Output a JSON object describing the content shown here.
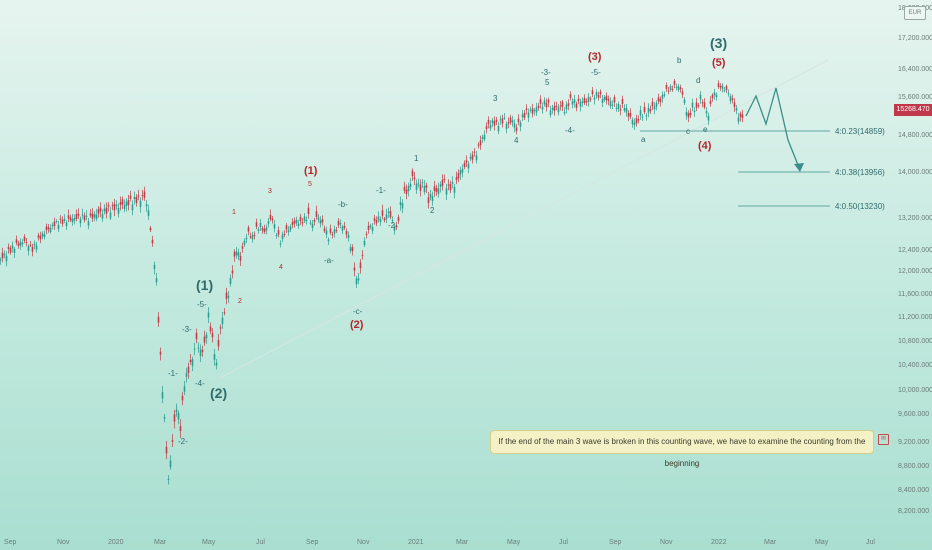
{
  "chart_data": {
    "type": "candlestick",
    "currency": "EUR",
    "last_price": "15268.470",
    "y_ticks": [
      "18,000.000",
      "17,200.000",
      "16,400.000",
      "15,600.000",
      "14,800.000",
      "14,000.000",
      "13,200.000",
      "12,400.000",
      "12,000.000",
      "11,600.000",
      "11,200.000",
      "10,800.000",
      "10,400.000",
      "10,000.000",
      "9,600.000",
      "9,200.000",
      "8,800.000",
      "8,400.000",
      "8,200.000"
    ],
    "y_tick_values": [
      18000,
      17200,
      16400,
      15600,
      14800,
      14000,
      13200,
      12400,
      12000,
      11600,
      11200,
      10800,
      10400,
      10000,
      9600,
      9200,
      8800,
      8400,
      8200
    ],
    "x_ticks": [
      "Sep",
      "Nov",
      "2020",
      "Mar",
      "May",
      "Jul",
      "Sep",
      "Nov",
      "2021",
      "Mar",
      "May",
      "Jul",
      "Sep",
      "Nov",
      "2022",
      "Mar",
      "May",
      "Jul"
    ],
    "close_path": [
      [
        0,
        12200
      ],
      [
        8,
        12350
      ],
      [
        16,
        12500
      ],
      [
        24,
        12600
      ],
      [
        32,
        12400
      ],
      [
        40,
        12700
      ],
      [
        48,
        12900
      ],
      [
        56,
        13050
      ],
      [
        64,
        13100
      ],
      [
        72,
        13150
      ],
      [
        80,
        13200
      ],
      [
        88,
        13150
      ],
      [
        96,
        13250
      ],
      [
        104,
        13300
      ],
      [
        112,
        13350
      ],
      [
        120,
        13400
      ],
      [
        128,
        13450
      ],
      [
        136,
        13500
      ],
      [
        144,
        13550
      ],
      [
        148,
        13300
      ],
      [
        152,
        12500
      ],
      [
        156,
        11800
      ],
      [
        160,
        10500
      ],
      [
        164,
        9500
      ],
      [
        168,
        8550
      ],
      [
        172,
        9200
      ],
      [
        176,
        9700
      ],
      [
        180,
        9400
      ],
      [
        184,
        10100
      ],
      [
        188,
        10300
      ],
      [
        192,
        10500
      ],
      [
        196,
        10800
      ],
      [
        200,
        10600
      ],
      [
        204,
        10700
      ],
      [
        208,
        11200
      ],
      [
        212,
        10800
      ],
      [
        216,
        10400
      ],
      [
        220,
        11000
      ],
      [
        224,
        11300
      ],
      [
        228,
        11600
      ],
      [
        232,
        12000
      ],
      [
        236,
        12400
      ],
      [
        240,
        12200
      ],
      [
        244,
        12600
      ],
      [
        248,
        12800
      ],
      [
        252,
        12700
      ],
      [
        256,
        12900
      ],
      [
        260,
        13000
      ],
      [
        264,
        12800
      ],
      [
        268,
        13100
      ],
      [
        272,
        13150
      ],
      [
        276,
        12800
      ],
      [
        280,
        12600
      ],
      [
        284,
        12800
      ],
      [
        288,
        12900
      ],
      [
        292,
        13000
      ],
      [
        296,
        13100
      ],
      [
        300,
        13050
      ],
      [
        304,
        13150
      ],
      [
        308,
        13200
      ],
      [
        312,
        13000
      ],
      [
        316,
        13200
      ],
      [
        320,
        13150
      ],
      [
        324,
        12900
      ],
      [
        328,
        12700
      ],
      [
        332,
        12800
      ],
      [
        336,
        12900
      ],
      [
        340,
        13050
      ],
      [
        344,
        12900
      ],
      [
        348,
        12700
      ],
      [
        352,
        12300
      ],
      [
        356,
        11800
      ],
      [
        360,
        12000
      ],
      [
        364,
        12600
      ],
      [
        368,
        12900
      ],
      [
        372,
        13000
      ],
      [
        376,
        13100
      ],
      [
        380,
        13200
      ],
      [
        384,
        13150
      ],
      [
        388,
        13300
      ],
      [
        392,
        13100
      ],
      [
        396,
        12900
      ],
      [
        400,
        13400
      ],
      [
        404,
        13600
      ],
      [
        408,
        13700
      ],
      [
        412,
        13900
      ],
      [
        416,
        13800
      ],
      [
        420,
        13700
      ],
      [
        424,
        13800
      ],
      [
        428,
        13500
      ],
      [
        432,
        13600
      ],
      [
        436,
        13650
      ],
      [
        440,
        13750
      ],
      [
        444,
        13800
      ],
      [
        448,
        13700
      ],
      [
        452,
        13750
      ],
      [
        456,
        13800
      ],
      [
        460,
        14000
      ],
      [
        464,
        14100
      ],
      [
        468,
        14200
      ],
      [
        472,
        14300
      ],
      [
        476,
        14400
      ],
      [
        480,
        14600
      ],
      [
        484,
        14800
      ],
      [
        488,
        15000
      ],
      [
        492,
        15050
      ],
      [
        496,
        15000
      ],
      [
        500,
        15050
      ],
      [
        504,
        15100
      ],
      [
        508,
        15000
      ],
      [
        512,
        15100
      ],
      [
        516,
        14900
      ],
      [
        520,
        15100
      ],
      [
        524,
        15200
      ],
      [
        528,
        15300
      ],
      [
        532,
        15250
      ],
      [
        536,
        15350
      ],
      [
        540,
        15400
      ],
      [
        544,
        15450
      ],
      [
        548,
        15400
      ],
      [
        552,
        15300
      ],
      [
        556,
        15350
      ],
      [
        560,
        15400
      ],
      [
        564,
        15300
      ],
      [
        568,
        15450
      ],
      [
        572,
        15550
      ],
      [
        576,
        15400
      ],
      [
        580,
        15500
      ],
      [
        584,
        15450
      ],
      [
        588,
        15550
      ],
      [
        592,
        15600
      ],
      [
        596,
        15650
      ],
      [
        600,
        15600
      ],
      [
        604,
        15550
      ],
      [
        608,
        15500
      ],
      [
        612,
        15450
      ],
      [
        616,
        15400
      ],
      [
        620,
        15350
      ],
      [
        624,
        15400
      ],
      [
        628,
        15200
      ],
      [
        632,
        15100
      ],
      [
        636,
        15000
      ],
      [
        640,
        15250
      ],
      [
        644,
        15200
      ],
      [
        648,
        15300
      ],
      [
        652,
        15350
      ],
      [
        656,
        15450
      ],
      [
        660,
        15500
      ],
      [
        664,
        15700
      ],
      [
        668,
        15800
      ],
      [
        672,
        15850
      ],
      [
        676,
        15900
      ],
      [
        680,
        15800
      ],
      [
        684,
        15500
      ],
      [
        688,
        15100
      ],
      [
        692,
        15400
      ],
      [
        696,
        15300
      ],
      [
        700,
        15600
      ],
      [
        704,
        15350
      ],
      [
        708,
        15200
      ],
      [
        712,
        15600
      ],
      [
        716,
        15700
      ],
      [
        720,
        15900
      ],
      [
        724,
        15800
      ],
      [
        728,
        15700
      ],
      [
        732,
        15500
      ],
      [
        736,
        15300
      ],
      [
        740,
        15100
      ],
      [
        744,
        15300
      ]
    ],
    "wave_labels": {
      "big1": "(1)",
      "big2": "(2)",
      "big3": "(3)",
      "red1": "(1)",
      "red2": "(2)",
      "red3": "(3)",
      "red4": "(4)",
      "red5": "(5)",
      "m5": "-5-",
      "m3": "-3-",
      "m1": "-1-",
      "m4": "-4-",
      "m2": "-2-",
      "r1": "1",
      "r3": "3",
      "r5": "5",
      "r2": "2",
      "r4": "4",
      "mb": "-b-",
      "ma": "-a-",
      "mc": "-c-",
      "m1b": "-1-",
      "m2b": "-2-",
      "t1": "1",
      "t2": "2",
      "t3": "3",
      "t4": "4",
      "m3b": "-3-",
      "t5": "5",
      "m5b": "-5-",
      "m4b": "-4-",
      "la": "a",
      "lb": "b",
      "lc": "c",
      "ld": "d",
      "le": "e"
    },
    "fib_levels": [
      {
        "label": "4:0.23(14859)",
        "value": 14859
      },
      {
        "label": "4:0.38(13956)",
        "value": 13956
      },
      {
        "label": "4:0.50(13230)",
        "value": 13230
      }
    ],
    "note": "If the end of the main 3 wave is broken in this counting wave, we have to examine the counting from the beginning"
  }
}
